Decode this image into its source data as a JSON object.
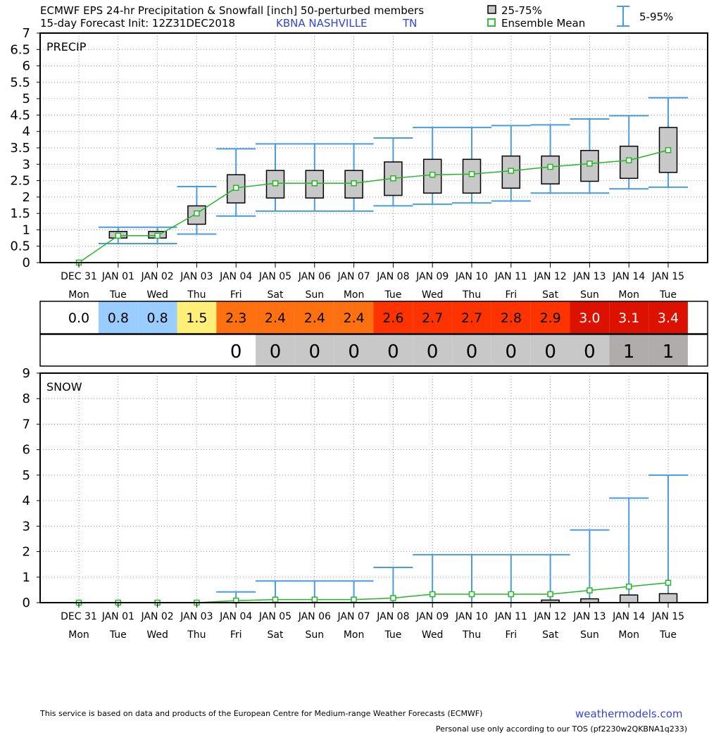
{
  "header": {
    "line1": "ECMWF EPS 24-hr Precipitation & Snowfall [inch]  50-perturbed members",
    "line2_prefix": "15-day Forecast Init: 12Z31DEC2018",
    "station": "KBNA  NASHVILLE",
    "state": "TN"
  },
  "legend": {
    "box": "25-75%",
    "mean": "Ensemble Mean",
    "whisker": "5-95%"
  },
  "footer": {
    "credit": "This service is based on data and products of the European Centre for Medium-range Weather Forecasts (ECMWF)",
    "website": "weathermodels.com",
    "tos": "Personal use only according to our TOS (pf2230w2QKBNA1q233)"
  },
  "colors": {
    "box_fill": "#c8c8c8",
    "whisker": "#4a9be0",
    "mean_line": "#22b822",
    "station_text": "#3344dd",
    "website_text": "#3344dd",
    "grid": "#999999"
  },
  "chart_data": [
    {
      "type": "box",
      "title": "PRECIP",
      "ylim": [
        0,
        7
      ],
      "yticks": [
        "0",
        "0.5",
        "1",
        "1.5",
        "2",
        "2.5",
        "3",
        "3.5",
        "4",
        "4.5",
        "5",
        "5.5",
        "6",
        "6.5",
        "7"
      ],
      "grid": true,
      "categories": [
        "DEC 31",
        "JAN 01",
        "JAN 02",
        "JAN 03",
        "JAN 04",
        "JAN 05",
        "JAN 06",
        "JAN 07",
        "JAN 08",
        "JAN 09",
        "JAN 10",
        "JAN 11",
        "JAN 12",
        "JAN 13",
        "JAN 14",
        "JAN 15"
      ],
      "weekdays": [
        "Mon",
        "Tue",
        "Wed",
        "Thu",
        "Fri",
        "Sat",
        "Sun",
        "Mon",
        "Tue",
        "Wed",
        "Thu",
        "Fri",
        "Sat",
        "Sun",
        "Mon",
        "Tue"
      ],
      "p25": [
        null,
        0.75,
        0.75,
        1.17,
        1.82,
        1.97,
        1.97,
        1.97,
        2.05,
        2.12,
        2.12,
        2.27,
        2.4,
        2.48,
        2.57,
        2.75
      ],
      "p75": [
        null,
        0.95,
        0.95,
        1.73,
        2.68,
        2.81,
        2.81,
        2.81,
        3.07,
        3.15,
        3.15,
        3.25,
        3.25,
        3.42,
        3.55,
        4.12
      ],
      "p5": [
        null,
        0.58,
        0.58,
        0.87,
        1.42,
        1.57,
        1.57,
        1.57,
        1.73,
        1.78,
        1.82,
        1.88,
        2.12,
        2.12,
        2.25,
        2.3
      ],
      "p95": [
        null,
        1.08,
        1.08,
        2.32,
        3.47,
        3.62,
        3.62,
        3.62,
        3.8,
        4.12,
        4.12,
        4.18,
        4.2,
        4.38,
        4.48,
        5.03
      ],
      "mean": [
        0.0,
        0.82,
        0.82,
        1.5,
        2.28,
        2.42,
        2.42,
        2.42,
        2.57,
        2.68,
        2.7,
        2.8,
        2.92,
        3.02,
        3.12,
        3.43
      ]
    },
    {
      "type": "box",
      "title": "SNOW",
      "ylim": [
        0,
        9
      ],
      "yticks": [
        "0",
        "1",
        "2",
        "3",
        "4",
        "5",
        "6",
        "7",
        "8",
        "9"
      ],
      "grid": true,
      "categories": [
        "DEC 31",
        "JAN 01",
        "JAN 02",
        "JAN 03",
        "JAN 04",
        "JAN 05",
        "JAN 06",
        "JAN 07",
        "JAN 08",
        "JAN 09",
        "JAN 10",
        "JAN 11",
        "JAN 12",
        "JAN 13",
        "JAN 14",
        "JAN 15"
      ],
      "weekdays": [
        "Mon",
        "Tue",
        "Wed",
        "Thu",
        "Fri",
        "Sat",
        "Sun",
        "Mon",
        "Tue",
        "Wed",
        "Thu",
        "Fri",
        "Sat",
        "Sun",
        "Mon",
        "Tue"
      ],
      "p25": [
        null,
        null,
        null,
        null,
        null,
        null,
        null,
        null,
        null,
        null,
        null,
        null,
        0.0,
        0.0,
        0.0,
        0.0
      ],
      "p75": [
        null,
        null,
        null,
        null,
        null,
        null,
        null,
        null,
        null,
        null,
        null,
        null,
        0.1,
        0.15,
        0.3,
        0.35
      ],
      "p5": [
        null,
        null,
        null,
        null,
        0,
        0,
        0,
        0,
        0,
        0,
        0,
        0,
        0,
        0,
        0,
        0
      ],
      "p95": [
        null,
        null,
        null,
        null,
        0.42,
        0.85,
        0.85,
        0.85,
        1.38,
        1.88,
        1.88,
        1.88,
        1.88,
        2.85,
        4.1,
        5.0
      ],
      "mean": [
        0.0,
        0.0,
        0.0,
        0.0,
        0.08,
        0.12,
        0.12,
        0.12,
        0.18,
        0.33,
        0.33,
        0.33,
        0.33,
        0.48,
        0.63,
        0.78
      ]
    },
    {
      "type": "table",
      "title": "",
      "rows": [
        {
          "values": [
            "0.0",
            "0.8",
            "0.8",
            "1.5",
            "2.3",
            "2.4",
            "2.4",
            "2.4",
            "2.6",
            "2.7",
            "2.7",
            "2.8",
            "2.9",
            "3.0",
            "3.1",
            "3.4"
          ],
          "colors": [
            "#ffffff",
            "#99ccff",
            "#99ccff",
            "#ffee77",
            "#ff7010",
            "#ff7010",
            "#ff7010",
            "#ff7010",
            "#ff3300",
            "#ff3300",
            "#ff3300",
            "#ff3300",
            "#ff3300",
            "#dd1100",
            "#dd1100",
            "#dd1100"
          ],
          "text_colors": [
            "#000000",
            "#000000",
            "#000000",
            "#000000",
            "#000000",
            "#000000",
            "#000000",
            "#000000",
            "#000000",
            "#000000",
            "#000000",
            "#000000",
            "#000000",
            "#ffffff",
            "#ffffff",
            "#ffffff"
          ]
        },
        {
          "values": [
            "",
            "",
            "",
            "",
            "0",
            "0",
            "0",
            "0",
            "0",
            "0",
            "0",
            "0",
            "0",
            "0",
            "1",
            "1"
          ],
          "colors": [
            "#ffffff",
            "#ffffff",
            "#ffffff",
            "#ffffff",
            "#ffffff",
            "#c8c8c8",
            "#c8c8c8",
            "#c8c8c8",
            "#c8c8c8",
            "#c8c8c8",
            "#c8c8c8",
            "#c8c8c8",
            "#c8c8c8",
            "#c8c8c8",
            "#b0acac",
            "#b0acac"
          ],
          "text_colors": [
            "#000000",
            "#000000",
            "#000000",
            "#000000",
            "#000000",
            "#000000",
            "#000000",
            "#000000",
            "#000000",
            "#000000",
            "#000000",
            "#000000",
            "#000000",
            "#000000",
            "#000000",
            "#000000"
          ]
        }
      ]
    }
  ]
}
